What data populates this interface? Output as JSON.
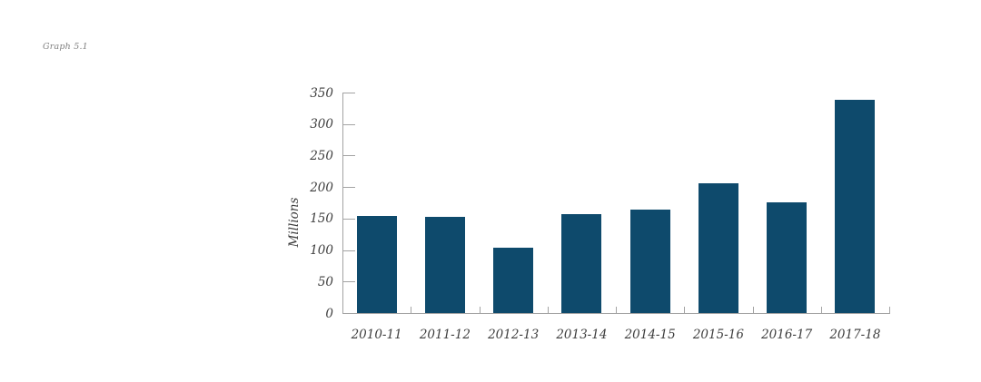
{
  "caption": "Graph 5.1",
  "chart_data": {
    "type": "bar",
    "categories": [
      "2010-11",
      "2011-12",
      "2012-13",
      "2013-14",
      "2014-15",
      "2015-16",
      "2016-17",
      "2017-18"
    ],
    "values": [
      154,
      153,
      103,
      157,
      164,
      206,
      176,
      339
    ],
    "title": "Graph 5.1",
    "xlabel": "",
    "ylabel": "Millions",
    "ylim": [
      0,
      350
    ],
    "ytick_step": 50,
    "yticks": [
      0,
      50,
      100,
      150,
      200,
      250,
      300,
      350
    ],
    "grid": false,
    "legend": false,
    "colors": {
      "bar": "#0e4a6c",
      "axis": "#a3a3a3",
      "tick_label": "#3d3d3d",
      "caption": "#7f7f7f",
      "background": "#ffffff"
    }
  }
}
